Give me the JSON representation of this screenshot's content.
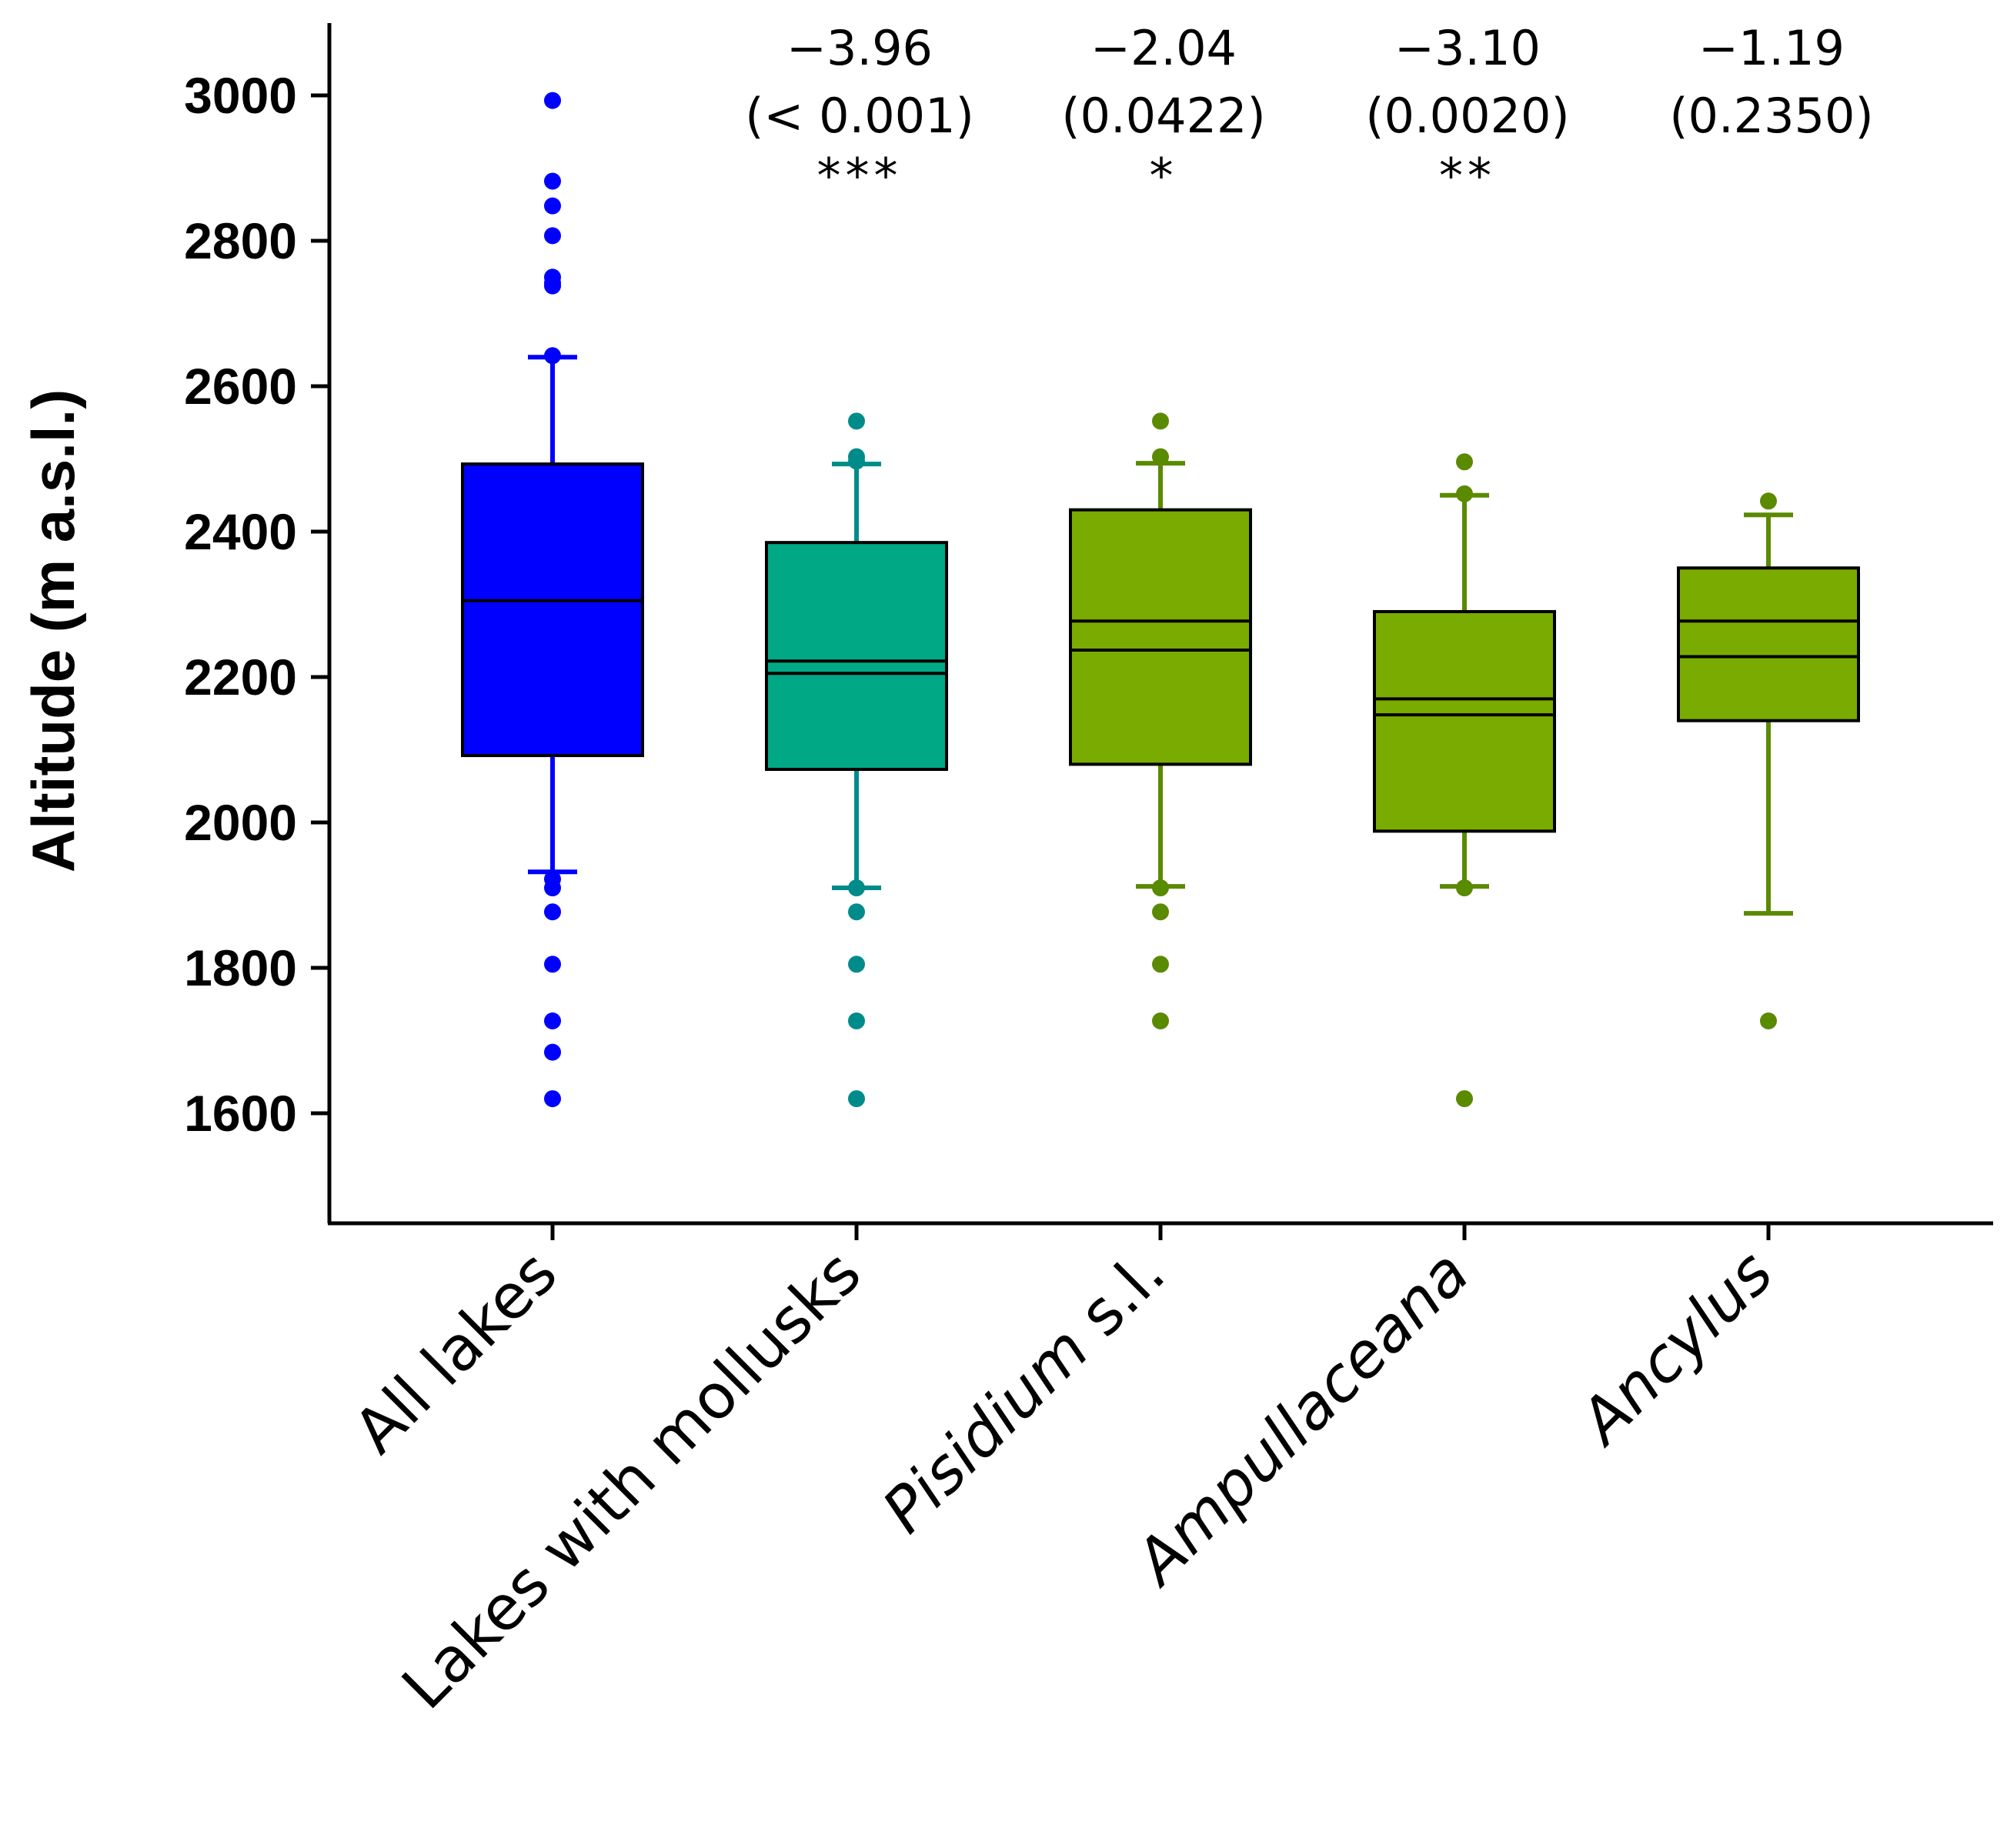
{
  "chart_data": {
    "type": "box",
    "title": "",
    "xlabel": "",
    "ylabel": "Altitude (m a.s.l.)",
    "ylim": [
      1470,
      3100
    ],
    "yticks": [
      1600,
      1800,
      2000,
      2200,
      2400,
      2600,
      2800,
      3000
    ],
    "grid": false,
    "groups": [
      {
        "label": "All lakes",
        "italic_part": "",
        "plain_part": "All lakes",
        "color": "#0000ff",
        "whisker_color": "#0000ff",
        "q1": 2092,
        "median": 2305,
        "q3": 2493,
        "whisker_low": 1932,
        "whisker_high": 2640,
        "outliers": [
          2993,
          2882,
          2848,
          2807,
          2750,
          2742,
          2738,
          2642,
          1922,
          1910,
          1877,
          1805,
          1727,
          1684,
          1620
        ],
        "stat": null,
        "pvalue": null,
        "stars": ""
      },
      {
        "label": "Lakes with mollusks",
        "italic_part": "",
        "plain_part": "Lakes with mollusks",
        "color": "#00a886",
        "whisker_color": "#008b8b",
        "q1": 2073,
        "median": 2205,
        "mean": 2222,
        "q3": 2385,
        "whisker_low": 1910,
        "whisker_high": 2493,
        "outliers": [
          2552,
          2503,
          2497,
          1910,
          1877,
          1805,
          1727,
          1620
        ],
        "stat": "−3.96",
        "pvalue": "(< 0.001)",
        "stars": "***"
      },
      {
        "label": "Pisidium s.l.",
        "italic_part": "Pisidium",
        "plain_part": " s.l.",
        "color": "#7aab00",
        "whisker_color": "#5a8a00",
        "q1": 2080,
        "median": 2237,
        "mean": 2277,
        "q3": 2430,
        "whisker_low": 1912,
        "whisker_high": 2494,
        "outliers": [
          2552,
          2503,
          1910,
          1877,
          1805,
          1727
        ],
        "stat": "−2.04",
        "pvalue": "(0.0422)",
        "stars": "*"
      },
      {
        "label": "Ampullaceana",
        "italic_part": "Ampullaceana",
        "plain_part": "",
        "color": "#7aab00",
        "whisker_color": "#5a8a00",
        "q1": 1988,
        "median": 2148,
        "mean": 2170,
        "q3": 2290,
        "whisker_low": 1912,
        "whisker_high": 2450,
        "outliers": [
          2496,
          2452,
          1910,
          1620
        ],
        "stat": "−3.10",
        "pvalue": "(0.0020)",
        "stars": "**"
      },
      {
        "label": "Ancylus",
        "italic_part": "Ancylus",
        "plain_part": "",
        "color": "#7aab00",
        "whisker_color": "#5a8a00",
        "q1": 2140,
        "median": 2228,
        "mean": 2277,
        "q3": 2350,
        "whisker_low": 1875,
        "whisker_high": 2423,
        "outliers": [
          2442,
          1727
        ],
        "stat": "−1.19",
        "pvalue": "(0.2350)",
        "stars": ""
      }
    ]
  }
}
